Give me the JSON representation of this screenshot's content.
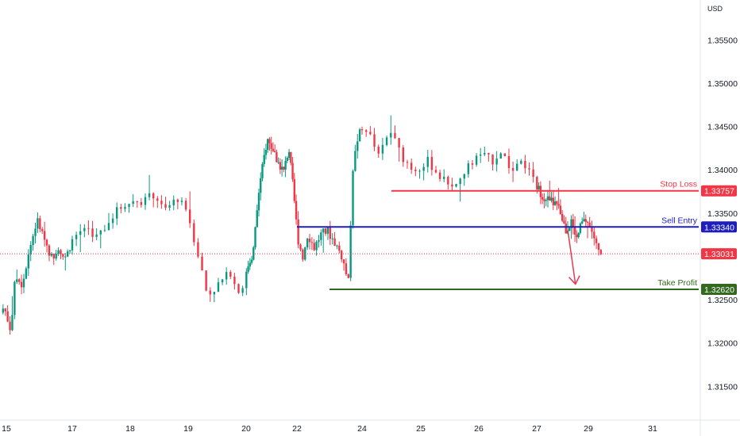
{
  "chart_data": {
    "type": "candlestick",
    "currency": "USD",
    "ylim": [
      1.3111,
      1.3596
    ],
    "yticks": [
      "1.35500",
      "1.35000",
      "1.34500",
      "1.34000",
      "1.33500",
      "1.32500",
      "1.32000",
      "1.31500"
    ],
    "ytick_values": [
      1.355,
      1.35,
      1.345,
      1.34,
      1.335,
      1.325,
      1.32,
      1.315
    ],
    "x_dates": [
      "15",
      "17",
      "18",
      "19",
      "20",
      "22",
      "24",
      "25",
      "26",
      "27",
      "29",
      "31"
    ],
    "levels": [
      {
        "name": "Stop Loss",
        "value": 1.33757,
        "label": "1.33757",
        "color": "#f23645",
        "from_day": 24.5
      },
      {
        "name": "Sell Entry",
        "value": 1.3334,
        "label": "1.33340",
        "color": "#1e1ebe",
        "from_day": 22.0
      },
      {
        "name": "Take Profit",
        "value": 1.3262,
        "label": "1.32620",
        "color": "#33691e",
        "from_day": 23.0
      }
    ],
    "current_price": {
      "value": 1.33031,
      "label": "1.33031",
      "color": "#f23645"
    },
    "arrow": {
      "from_day": 28.2,
      "from_price": 1.3331,
      "to_day": 28.5,
      "to_price": 1.3268,
      "color": "#e53950"
    },
    "series": [
      {
        "name": "",
        "up_color": "#089981",
        "down_color": "#f23645",
        "anchors": [
          [
            14.9,
            1.3235
          ],
          [
            15.0,
            1.3242
          ],
          [
            15.2,
            1.3215
          ],
          [
            15.35,
            1.3278
          ],
          [
            15.55,
            1.3268
          ],
          [
            15.75,
            1.3305
          ],
          [
            16.0,
            1.3342
          ],
          [
            16.25,
            1.3318
          ],
          [
            16.45,
            1.3298
          ],
          [
            16.65,
            1.3312
          ],
          [
            16.85,
            1.3296
          ],
          [
            17.1,
            1.3322
          ],
          [
            17.3,
            1.3335
          ],
          [
            17.5,
            1.3322
          ],
          [
            17.8,
            1.335
          ],
          [
            18.0,
            1.3362
          ],
          [
            18.3,
            1.3365
          ],
          [
            18.5,
            1.3371
          ],
          [
            18.65,
            1.3352
          ],
          [
            18.9,
            1.3368
          ],
          [
            19.1,
            1.334
          ],
          [
            19.25,
            1.33
          ],
          [
            19.4,
            1.3255
          ],
          [
            19.6,
            1.3268
          ],
          [
            19.8,
            1.3282
          ],
          [
            19.95,
            1.3258
          ],
          [
            20.15,
            1.329
          ],
          [
            20.35,
            1.3305
          ],
          [
            20.55,
            1.337
          ],
          [
            20.75,
            1.341
          ],
          [
            20.9,
            1.3435
          ],
          [
            21.1,
            1.3425
          ],
          [
            21.3,
            1.341
          ],
          [
            21.55,
            1.3398
          ],
          [
            21.75,
            1.3425
          ],
          [
            21.95,
            1.337
          ],
          [
            22.1,
            1.332
          ],
          [
            22.25,
            1.33
          ],
          [
            22.4,
            1.3326
          ],
          [
            22.6,
            1.331
          ],
          [
            22.8,
            1.3325
          ],
          [
            23.0,
            1.333
          ],
          [
            23.25,
            1.3315
          ],
          [
            23.45,
            1.33
          ],
          [
            23.65,
            1.327
          ],
          [
            23.78,
            1.34
          ],
          [
            23.95,
            1.344
          ],
          [
            24.15,
            1.3448
          ],
          [
            24.35,
            1.3415
          ],
          [
            24.55,
            1.3445
          ],
          [
            24.75,
            1.3415
          ],
          [
            24.95,
            1.34
          ],
          [
            25.2,
            1.341
          ],
          [
            25.45,
            1.3388
          ],
          [
            25.7,
            1.3382
          ],
          [
            25.9,
            1.3405
          ],
          [
            26.1,
            1.3418
          ],
          [
            26.3,
            1.341
          ],
          [
            26.45,
            1.3422
          ],
          [
            26.65,
            1.3398
          ],
          [
            26.85,
            1.3408
          ],
          [
            27.05,
            1.3382
          ],
          [
            27.3,
            1.337
          ],
          [
            27.55,
            1.3365
          ],
          [
            27.8,
            1.336
          ],
          [
            28.0,
            1.335
          ],
          [
            28.2,
            1.333
          ],
          [
            28.4,
            1.334
          ],
          [
            28.6,
            1.3318
          ],
          [
            28.8,
            1.3338
          ],
          [
            29.0,
            1.3342
          ],
          [
            29.2,
            1.3328
          ],
          [
            29.35,
            1.3308
          ],
          [
            29.45,
            1.3301
          ]
        ]
      }
    ]
  }
}
